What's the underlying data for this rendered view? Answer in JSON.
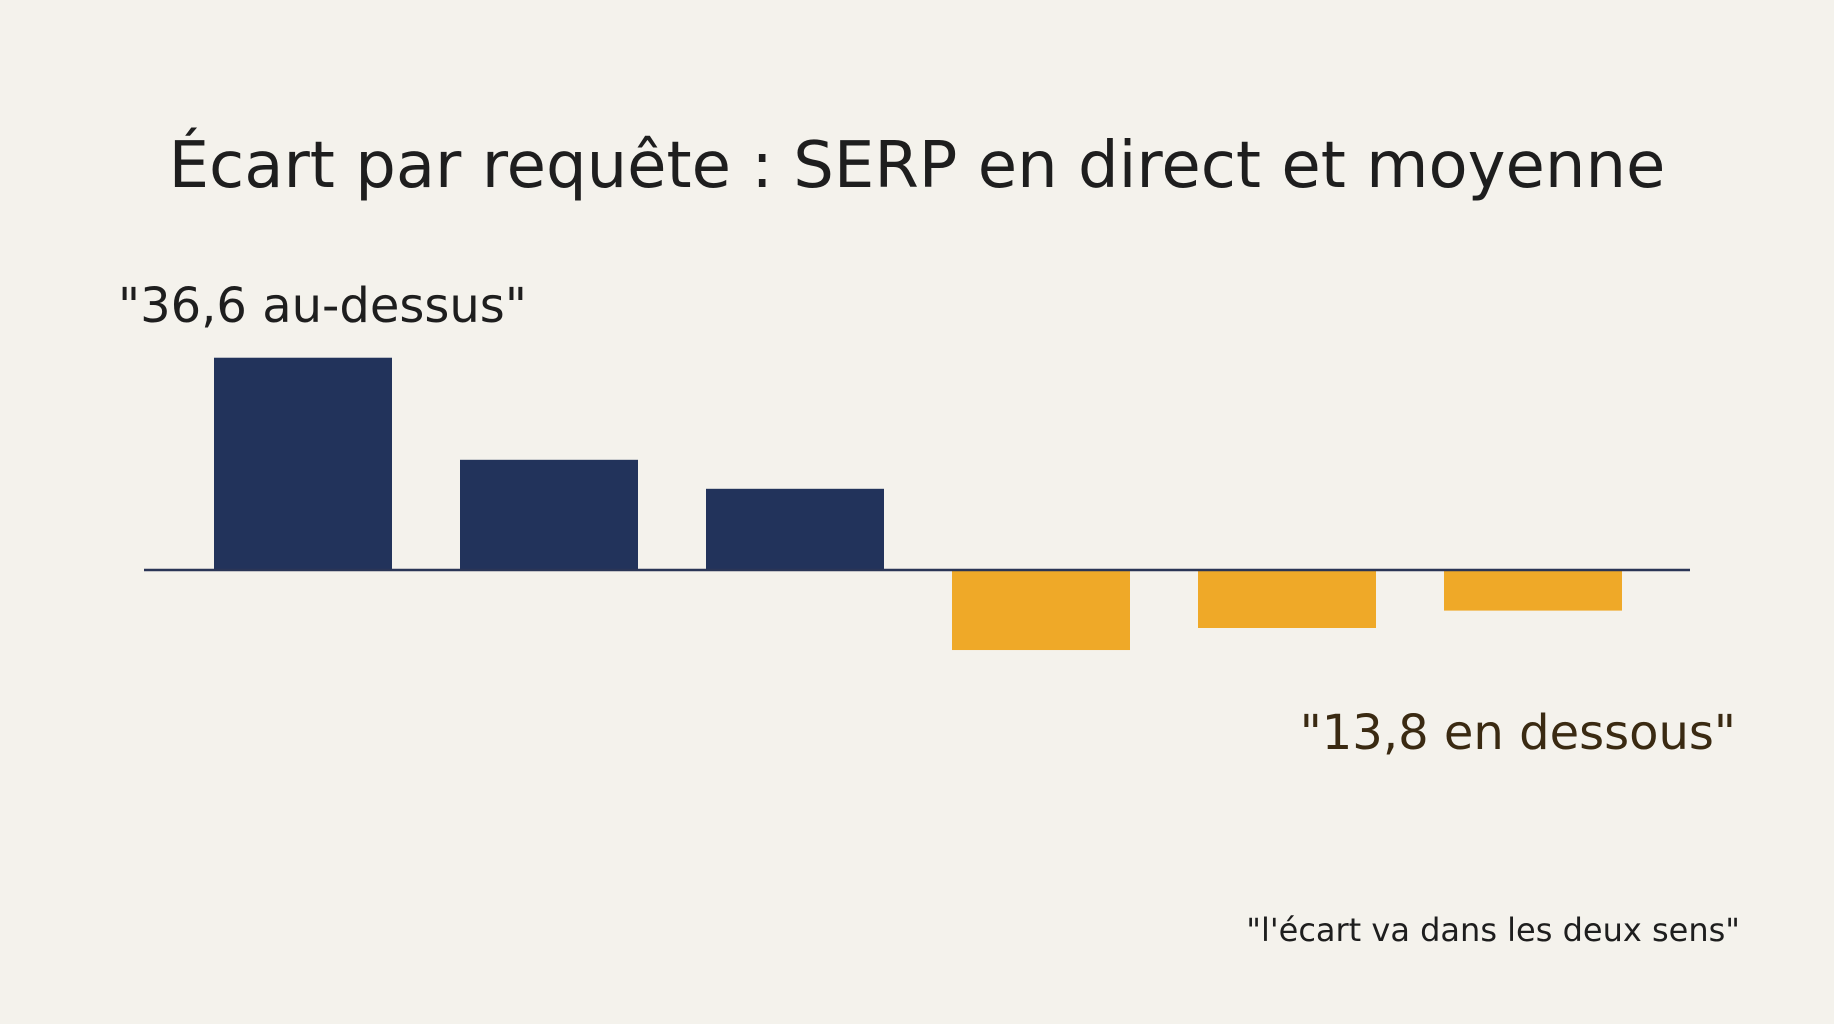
{
  "title": "Écart par requête : SERP en direct et moyenne",
  "chart_data": {
    "type": "bar",
    "title": "Écart par requête : SERP en direct et moyenne",
    "categories": [
      "",
      "",
      "",
      "",
      "",
      ""
    ],
    "values": [
      36.6,
      19.0,
      14.0,
      -13.8,
      -10.0,
      -7.0
    ],
    "ylim": [
      -20,
      40
    ],
    "grid": false,
    "legend": "none",
    "positive_color": "#22335b",
    "negative_color": "#efa928",
    "axis_color": "#2a3556"
  },
  "annotations": {
    "max_above": "\"36,6 au-dessus\"",
    "max_below": "\"13,8 en dessous\"",
    "note": "\"l'écart va dans les deux sens\""
  },
  "colors": {
    "background": "#f4f2ec",
    "text": "#1e1e1e",
    "positive": "#22335b",
    "negative": "#efa928"
  }
}
